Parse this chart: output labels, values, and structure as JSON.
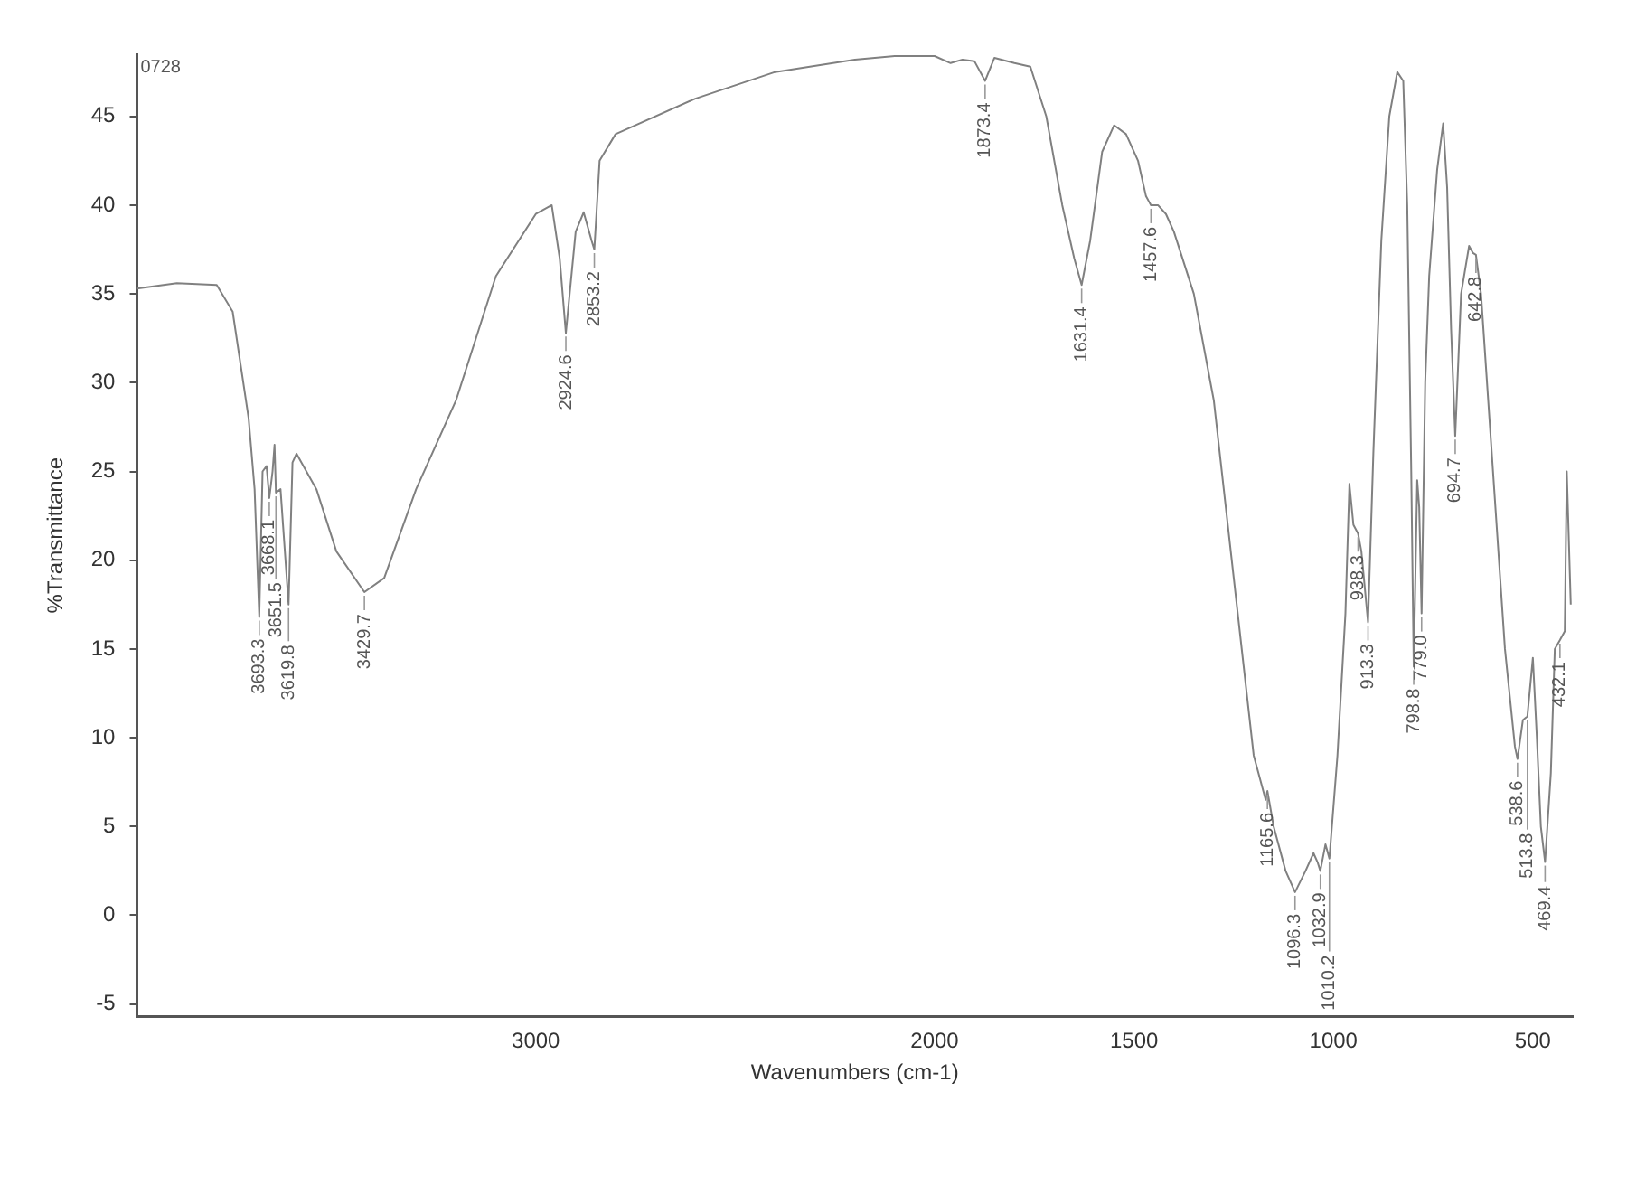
{
  "chart_data": {
    "type": "line",
    "xlabel": "Wavenumbers (cm-1)",
    "ylabel": "%Transmittance",
    "color": "#808080",
    "grid": false,
    "legend": false,
    "marker": "none",
    "xlim": [
      4000,
      400
    ],
    "ylim": [
      -5.7,
      48.5
    ],
    "xticks": [
      3000,
      2000,
      1500,
      1000,
      500
    ],
    "yticks": [
      -5,
      0,
      5,
      10,
      15,
      20,
      25,
      30,
      35,
      40,
      45
    ],
    "x": [
      4000,
      3900,
      3800,
      3760,
      3720,
      3705,
      3693.3,
      3685,
      3675,
      3668.1,
      3660,
      3655,
      3651.5,
      3640,
      3619.8,
      3610,
      3600,
      3550,
      3500,
      3429.7,
      3380,
      3300,
      3200,
      3100,
      3000,
      2960,
      2940,
      2924.6,
      2900,
      2880,
      2860,
      2853.2,
      2840,
      2800,
      2600,
      2400,
      2200,
      2100,
      2000,
      1960,
      1930,
      1900,
      1873.4,
      1850,
      1800,
      1760,
      1720,
      1680,
      1650,
      1631.4,
      1610,
      1580,
      1550,
      1520,
      1490,
      1470,
      1457.6,
      1440,
      1420,
      1400,
      1350,
      1300,
      1250,
      1200,
      1170,
      1165.6,
      1150,
      1120,
      1096.3,
      1070,
      1050,
      1040,
      1032.9,
      1020,
      1010.2,
      990,
      970,
      960,
      950,
      938.3,
      930,
      913.3,
      900,
      880,
      860,
      840,
      825,
      815,
      805,
      798.8,
      790,
      785,
      779,
      770,
      760,
      740,
      725,
      715,
      705,
      694.7,
      680,
      660,
      650,
      642.8,
      630,
      600,
      570,
      545,
      538.6,
      525,
      513.8,
      500,
      490,
      480,
      469.4,
      455,
      445,
      432.1,
      420,
      415,
      405
    ],
    "values": [
      35.3,
      35.6,
      35.5,
      34,
      28,
      24,
      16.8,
      25,
      25.3,
      23.5,
      25,
      26.5,
      23.8,
      24,
      17.5,
      25.5,
      26,
      24,
      20.5,
      18.2,
      19,
      24,
      29,
      36,
      39.5,
      40,
      37,
      32.8,
      38.5,
      39.6,
      38,
      37.5,
      42.5,
      44,
      46,
      47.5,
      48.2,
      48.4,
      48.4,
      48,
      48.2,
      48.1,
      47,
      48.3,
      48,
      47.8,
      45,
      40,
      37,
      35.5,
      38,
      43,
      44.5,
      44,
      42.5,
      40.5,
      40,
      40,
      39.5,
      38.5,
      35,
      29,
      19,
      9,
      6.5,
      7,
      5,
      2.5,
      1.3,
      2.5,
      3.5,
      3,
      2.5,
      4,
      3.2,
      9,
      17,
      24.3,
      22,
      21.5,
      20.5,
      16.5,
      26,
      38,
      45,
      47.5,
      47,
      40,
      25,
      14,
      24.5,
      23,
      17,
      30,
      36,
      42,
      44.6,
      41,
      33,
      27,
      35,
      37.7,
      37.3,
      37.2,
      35,
      25,
      15,
      9.5,
      8.8,
      11,
      11.2,
      14.5,
      10,
      5,
      3,
      8,
      15,
      15.5,
      16,
      25,
      17.5
    ],
    "annotations": [
      "0728",
      {
        "text": "3693.3",
        "x": 3693.3,
        "y": 16.8
      },
      {
        "text": "3668.1",
        "x": 3668.1,
        "y": 23.5
      },
      {
        "text": "3651.5",
        "x": 3651.5,
        "y": 23.8
      },
      {
        "text": "3619.8",
        "x": 3619.8,
        "y": 17.5
      },
      {
        "text": "3429.7",
        "x": 3429.7,
        "y": 18.2
      },
      {
        "text": "2924.6",
        "x": 2924.6,
        "y": 32.8
      },
      {
        "text": "2853.2",
        "x": 2853.2,
        "y": 37.5
      },
      {
        "text": "1873.4",
        "x": 1873.4,
        "y": 47
      },
      {
        "text": "1631.4",
        "x": 1631.4,
        "y": 35.5
      },
      {
        "text": "1457.6",
        "x": 1457.6,
        "y": 40
      },
      {
        "text": "1165.6",
        "x": 1165.6,
        "y": 7
      },
      {
        "text": "1096.3",
        "x": 1096.3,
        "y": 1.3
      },
      {
        "text": "1032.9",
        "x": 1032.9,
        "y": 2.5
      },
      {
        "text": "1010.2",
        "x": 1010.2,
        "y": 3.2
      },
      {
        "text": "938.3",
        "x": 938.3,
        "y": 21.5
      },
      {
        "text": "913.3",
        "x": 913.3,
        "y": 16.5
      },
      {
        "text": "798.8",
        "x": 798.8,
        "y": 14
      },
      {
        "text": "779.0",
        "x": 779,
        "y": 17
      },
      {
        "text": "694.7",
        "x": 694.7,
        "y": 27
      },
      {
        "text": "642.8",
        "x": 642.8,
        "y": 37.2
      },
      {
        "text": "538.6",
        "x": 538.6,
        "y": 8.8
      },
      {
        "text": "513.8",
        "x": 513.8,
        "y": 11.2
      },
      {
        "text": "469.4",
        "x": 469.4,
        "y": 3
      },
      {
        "text": "432.1",
        "x": 432.1,
        "y": 15.5
      }
    ]
  }
}
